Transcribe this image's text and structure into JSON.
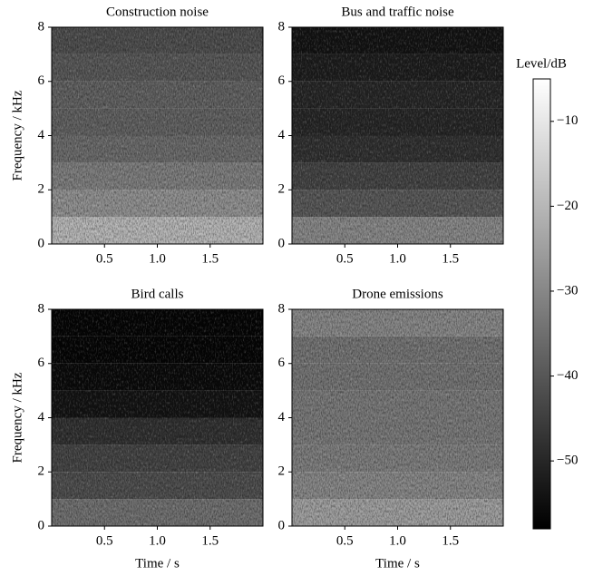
{
  "chart_data": [
    {
      "type": "spectrogram",
      "title": "Construction noise",
      "ylabel": "Frequency / kHz",
      "xlim": [
        0,
        2
      ],
      "xticks": [
        0.5,
        {
          "value": 1,
          "label": "1.0"
        },
        1.5
      ],
      "ylim": [
        0,
        8
      ],
      "yticks": [
        0,
        2,
        4,
        6,
        8
      ],
      "levels": [
        -20,
        -28,
        -32,
        -36,
        -38,
        -38,
        -40,
        -42
      ]
    },
    {
      "type": "spectrogram",
      "title": "Bus and traffic noise",
      "xlim": [
        0,
        2
      ],
      "xticks": [
        0.5,
        {
          "value": 1,
          "label": "1.0"
        },
        1.5
      ],
      "ylim": [
        0,
        8
      ],
      "yticks": [
        0,
        2,
        4,
        6,
        8
      ],
      "levels": [
        -30,
        -40,
        -44,
        -48,
        -50,
        -50,
        -52,
        -54
      ]
    },
    {
      "type": "spectrogram",
      "title": "Bird calls",
      "ylabel": "Frequency / kHz",
      "xlabel": "Time / s",
      "xlim": [
        0,
        2
      ],
      "xticks": [
        0.5,
        {
          "value": 1,
          "label": "1.0"
        },
        1.5
      ],
      "ylim": [
        0,
        8
      ],
      "yticks": [
        0,
        2,
        4,
        6,
        8
      ],
      "levels": [
        -35,
        -42,
        -44,
        -48,
        -54,
        -56,
        -57,
        -57
      ]
    },
    {
      "type": "spectrogram",
      "title": "Drone emissions",
      "xlabel": "Time / s",
      "xlim": [
        0,
        2
      ],
      "xticks": [
        0.5,
        {
          "value": 1,
          "label": "1.0"
        },
        1.5
      ],
      "ylim": [
        0,
        8
      ],
      "yticks": [
        0,
        2,
        4,
        6,
        8
      ],
      "levels": [
        -25,
        -30,
        -32,
        -33,
        -33,
        -34,
        -34,
        -30
      ]
    }
  ],
  "colorbar": {
    "label": "Level/dB",
    "clim": [
      -58,
      -5
    ],
    "colormap": "gray",
    "ticks": [
      {
        "value": -10,
        "label": "−10"
      },
      {
        "value": -20,
        "label": "−20"
      },
      {
        "value": -30,
        "label": "−30"
      },
      {
        "value": -40,
        "label": "−40"
      },
      {
        "value": -50,
        "label": "−50"
      }
    ]
  }
}
